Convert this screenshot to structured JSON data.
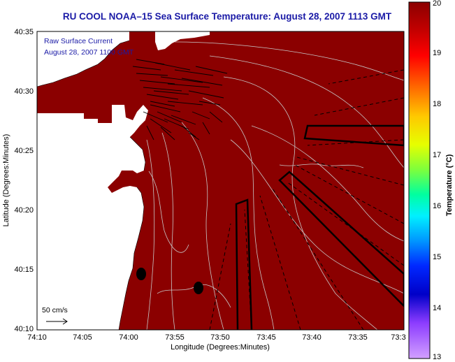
{
  "title": "RU COOL  NOAA–15  Sea Surface Temperature:  August 28, 2007 1113 GMT",
  "overlay": {
    "line1": "Raw Surface Current",
    "line2": "August 28, 2007 1100 GMT"
  },
  "axes": {
    "xlabel": "Longitude (Degrees:Minutes)",
    "ylabel": "Latitude (Degrees:Minutes)",
    "xticks": [
      "74:10",
      "74:05",
      "74:00",
      "73:55",
      "73:50",
      "73:45",
      "73:40",
      "73:35",
      "73:3"
    ],
    "yticks": [
      "40:35",
      "40:30",
      "40:25",
      "40:20",
      "40:15",
      "40:10"
    ]
  },
  "scale_bar": {
    "label": "50 cm/s"
  },
  "colorbar": {
    "label": "Temperature (°C)",
    "ticks": [
      "20",
      "19",
      "18",
      "17",
      "16",
      "15",
      "14",
      "13"
    ],
    "colors": [
      "#8b0000",
      "#c00000",
      "#ff0000",
      "#ff6600",
      "#ffcc00",
      "#ccff00",
      "#66ff33",
      "#00ffcc",
      "#00ccff",
      "#0066ff",
      "#0000ff",
      "#0000cc",
      "#9933ff",
      "#cc66ff"
    ]
  },
  "colors": {
    "sea": "#8b0000",
    "land": "#ffffff",
    "title": "#1a1aa6",
    "contour": "#c8c8c8"
  }
}
